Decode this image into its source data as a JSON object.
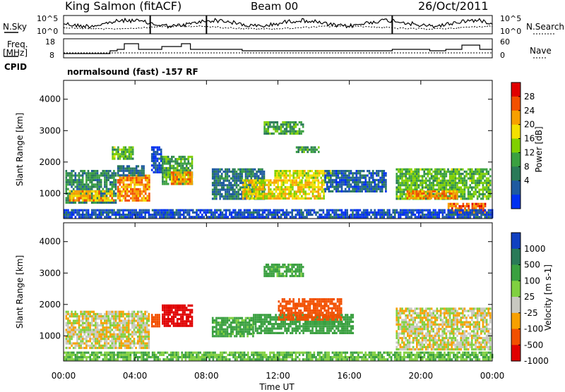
{
  "header": {
    "station": "King Salmon (fitACF)",
    "beam": "Beam 00",
    "date": "26/Oct/2011"
  },
  "left_labels": {
    "nsky": "N.Sky",
    "freq_line1": "Freq.",
    "freq_line2": "[MHz]",
    "cpid": "CPID"
  },
  "right_labels": {
    "nsearch": "N.Search",
    "nave": "Nave"
  },
  "cpid_text": "normalsound (fast) -157 RF",
  "noise_panel": {
    "left_ticks": [
      "10^5",
      "10^0"
    ],
    "right_ticks": [
      "10^5",
      "10^0"
    ]
  },
  "freq_panel": {
    "left_ticks": [
      "18",
      "8"
    ],
    "right_ticks": [
      "60",
      "0"
    ]
  },
  "chart_data": [
    {
      "type": "heatmap",
      "title": "Power",
      "ylabel": "Slant Range [km]",
      "xlabel": "Time UT",
      "xticks": [
        "00:00",
        "04:00",
        "08:00",
        "12:00",
        "16:00",
        "20:00",
        "00:00"
      ],
      "yticks": [
        "1000",
        "2000",
        "3000",
        "4000"
      ],
      "ylim": [
        200,
        4600
      ],
      "colorbar": {
        "label": "Power [dB]",
        "ticks": [
          "28",
          "24",
          "20",
          "16",
          "12",
          "8",
          "4"
        ],
        "colors": [
          "#e00000",
          "#f25000",
          "#f7a000",
          "#f3e000",
          "#80d000",
          "#3aa040",
          "#2a7a58",
          "#1e5aa0",
          "#0030f0"
        ]
      },
      "regions": [
        {
          "t": [
            0.1,
            2.9
          ],
          "r": [
            700,
            1750
          ],
          "v": 12
        },
        {
          "t": [
            0.3,
            2.8
          ],
          "r": [
            750,
            1100
          ],
          "v": 24
        },
        {
          "t": [
            3.0,
            4.8
          ],
          "r": [
            800,
            1600
          ],
          "v": 26
        },
        {
          "t": [
            3.0,
            4.5
          ],
          "r": [
            1600,
            1900
          ],
          "v": 10
        },
        {
          "t": [
            2.7,
            3.9
          ],
          "r": [
            2100,
            2500
          ],
          "v": 16
        },
        {
          "t": [
            4.9,
            5.5
          ],
          "r": [
            1700,
            2500
          ],
          "v": 6
        },
        {
          "t": [
            5.5,
            7.2
          ],
          "r": [
            1300,
            2200
          ],
          "v": 14
        },
        {
          "t": [
            6.0,
            7.2
          ],
          "r": [
            1300,
            1700
          ],
          "v": 26
        },
        {
          "t": [
            8.3,
            11.2
          ],
          "r": [
            800,
            1800
          ],
          "v": 10
        },
        {
          "t": [
            10.0,
            14.6
          ],
          "r": [
            850,
            1450
          ],
          "v": 22
        },
        {
          "t": [
            11.8,
            15.0
          ],
          "r": [
            1500,
            1750
          ],
          "v": 20
        },
        {
          "t": [
            14.6,
            18.0
          ],
          "r": [
            1100,
            1750
          ],
          "v": 8
        },
        {
          "t": [
            11.2,
            13.4
          ],
          "r": [
            2900,
            3300
          ],
          "v": 14
        },
        {
          "t": [
            13.0,
            14.3
          ],
          "r": [
            2300,
            2500
          ],
          "v": 14
        },
        {
          "t": [
            18.6,
            23.9
          ],
          "r": [
            800,
            1800
          ],
          "v": 16
        },
        {
          "t": [
            19.2,
            22.0
          ],
          "r": [
            850,
            1100
          ],
          "v": 26
        },
        {
          "t": [
            21.5,
            23.6
          ],
          "r": [
            350,
            700
          ],
          "v": 28
        },
        {
          "t": [
            0.0,
            24.0
          ],
          "r": [
            250,
            500
          ],
          "v": 6
        }
      ]
    },
    {
      "type": "heatmap",
      "title": "Velocity",
      "ylabel": "Slant Range [km]",
      "xlabel": "Time UT",
      "xticks": [
        "00:00",
        "04:00",
        "08:00",
        "12:00",
        "16:00",
        "20:00",
        "00:00"
      ],
      "yticks": [
        "1000",
        "2000",
        "3000",
        "4000"
      ],
      "ylim": [
        200,
        4600
      ],
      "colorbar": {
        "label": "Velocity [m s-1]",
        "ticks": [
          "1000",
          "500",
          "100",
          "25",
          "-25",
          "-100",
          "-500",
          "-1000"
        ],
        "colors": [
          "#1040c0",
          "#2a7a58",
          "#3aa040",
          "#80d040",
          "#c8c8c0",
          "#f7a000",
          "#f25000",
          "#e00000"
        ]
      },
      "regions": [
        {
          "t": [
            0.1,
            4.8
          ],
          "r": [
            600,
            1800
          ],
          "v": 0
        },
        {
          "t": [
            4.9,
            5.4
          ],
          "r": [
            1300,
            1700
          ],
          "v": -400
        },
        {
          "t": [
            5.5,
            7.2
          ],
          "r": [
            1300,
            2000
          ],
          "v": -700
        },
        {
          "t": [
            8.3,
            10.6
          ],
          "r": [
            1000,
            1600
          ],
          "v": 150
        },
        {
          "t": [
            10.6,
            16.2
          ],
          "r": [
            1100,
            1700
          ],
          "v": 200
        },
        {
          "t": [
            12.0,
            15.5
          ],
          "r": [
            1500,
            2200
          ],
          "v": -300
        },
        {
          "t": [
            11.2,
            13.4
          ],
          "r": [
            2900,
            3300
          ],
          "v": 150
        },
        {
          "t": [
            18.6,
            23.9
          ],
          "r": [
            600,
            1900
          ],
          "v": 0
        },
        {
          "t": [
            0.0,
            24.0
          ],
          "r": [
            250,
            500
          ],
          "v": 100
        }
      ]
    }
  ]
}
